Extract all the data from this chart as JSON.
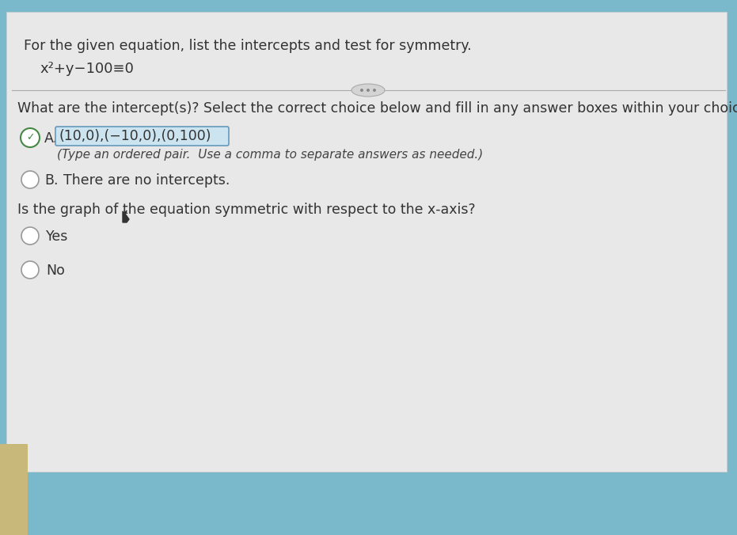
{
  "bg_color": "#d8d8d8",
  "blue_top": "#7ab8cc",
  "panel_color": "#e8e8e8",
  "tan_strip": "#c8b87a",
  "title_line1": "For the given equation, list the intercepts and test for symmetry.",
  "equation": "x²+y−100≡0",
  "divider_color": "#aaaaaa",
  "question1": "What are the intercept(s)? Select the correct choice below and fill in any answer boxes within your choice.",
  "choice_A_label": "A.",
  "choice_A_answer": "(10,0),(−10,0),(0,100)",
  "choice_A_hint": "(Type an ordered pair.  Use a comma to separate answers as needed.)",
  "choice_B_label": "B.",
  "choice_B_text": "There are no intercepts.",
  "question2": "Is the graph of the equation symmetric with respect to the x-axis?",
  "yes_label": "Yes",
  "no_label": "No",
  "answer_box_color": "#cce4f0",
  "answer_box_border": "#6699bb",
  "check_green": "#448844",
  "radio_color": "#999999",
  "text_color": "#333333",
  "hint_color": "#444444",
  "font_size_body": 12.5,
  "font_size_equation": 13,
  "font_size_hint": 11
}
